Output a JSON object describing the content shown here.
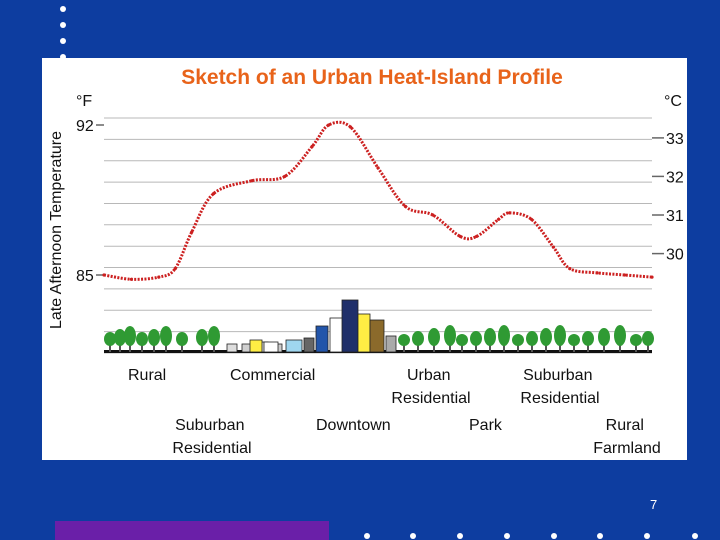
{
  "chart_data": {
    "type": "line",
    "title": "Sketch of an Urban Heat-Island Profile",
    "ylabel": "Late Afternoon Temperature",
    "y_unit_left": "°F",
    "y_unit_right": "°C",
    "ylim_f": [
      83.5,
      93.2
    ],
    "left_ticks_f": [
      92,
      85
    ],
    "right_ticks_c": [
      33,
      32,
      31,
      30
    ],
    "grid": true,
    "x": [
      0,
      0.05,
      0.1,
      0.13,
      0.16,
      0.2,
      0.27,
      0.33,
      0.38,
      0.41,
      0.45,
      0.5,
      0.55,
      0.6,
      0.65,
      0.68,
      0.72,
      0.74,
      0.78,
      0.82,
      0.85,
      0.9,
      0.95,
      1
    ],
    "series": [
      {
        "values": [
          85.0,
          84.8,
          84.9,
          85.3,
          87.0,
          88.8,
          89.4,
          89.6,
          91.0,
          92.0,
          91.9,
          90.0,
          88.2,
          87.8,
          86.8,
          86.8,
          87.6,
          87.9,
          87.6,
          86.3,
          85.3,
          85.1,
          85.0,
          84.9
        ]
      }
    ],
    "zones_top": [
      "Rural",
      "Commercial",
      "Urban Residential",
      "Suburban Residential"
    ],
    "zones_bottom": [
      "Suburban Residential",
      "Downtown",
      "Park",
      "Rural Farmland"
    ],
    "colors": {
      "curve": "#cc2020",
      "title": "#e8631a",
      "grid": "#b8b8b8",
      "slide_background": "#0d3da0",
      "bottom_bar": "#6a1fa8"
    }
  },
  "slide": {
    "page_number": "7"
  }
}
